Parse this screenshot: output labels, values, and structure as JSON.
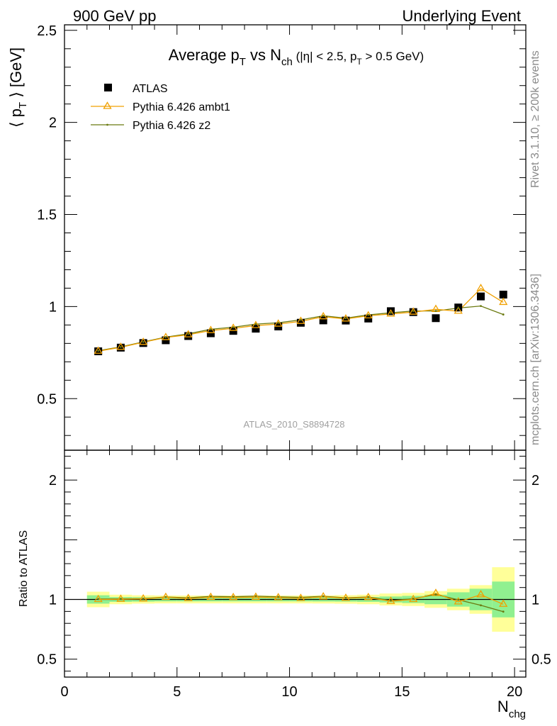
{
  "header": {
    "left": "900 GeV pp",
    "right": "Underlying Event"
  },
  "title": {
    "main": "Average p",
    "sub1": "T",
    "vs": " vs N",
    "sub2": "ch",
    "cond1": " (|η| < 2.5, p",
    "sub3": "T",
    "cond2": " > 0.5 GeV)"
  },
  "side_labels": {
    "rivet": "Rivet 3.1.10, ≥ 200k events",
    "mcplots": "mcplots.cern.ch [arXiv:1306.3436]"
  },
  "watermark": "ATLAS_2010_S8894728",
  "legend": {
    "atlas": "ATLAS",
    "ambt1": "Pythia 6.426 ambt1",
    "z2": "Pythia 6.426 z2"
  },
  "colors": {
    "ambt1": "#f0a000",
    "z2": "#6b7a10",
    "band_inner": "#90f090",
    "band_outer": "#ffff99",
    "data": "#000000"
  },
  "chart_data": {
    "type": "scatter",
    "x_axis": {
      "label_main": "N",
      "label_sub": "chg",
      "range": [
        0,
        20.5
      ],
      "ticks": [
        "0",
        "5",
        "10",
        "15",
        "20"
      ]
    },
    "main_panel": {
      "ylabel_main": "⟨ p",
      "ylabel_sub": "T",
      "ylabel_end": " ⟩ [GeV]",
      "yrange": [
        0.22,
        2.53
      ],
      "yticks": [
        "0.5",
        "1",
        "1.5",
        "2",
        "2.5"
      ],
      "series": [
        {
          "name": "ATLAS",
          "x": [
            1.5,
            2.5,
            3.5,
            4.5,
            5.5,
            6.5,
            7.5,
            8.5,
            9.5,
            10.5,
            11.5,
            12.5,
            13.5,
            14.5,
            15.5,
            16.5,
            17.5,
            18.5,
            19.5
          ],
          "y": [
            0.757,
            0.777,
            0.802,
            0.817,
            0.84,
            0.855,
            0.868,
            0.88,
            0.892,
            0.912,
            0.925,
            0.924,
            0.935,
            0.975,
            0.97,
            0.937,
            0.995,
            1.055,
            1.065
          ]
        },
        {
          "name": "Pythia 6.426 ambt1",
          "x": [
            1.5,
            2.5,
            3.5,
            4.5,
            5.5,
            6.5,
            7.5,
            8.5,
            9.5,
            10.5,
            11.5,
            12.5,
            13.5,
            14.5,
            15.5,
            16.5,
            17.5,
            18.5,
            19.5
          ],
          "y": [
            0.758,
            0.779,
            0.806,
            0.832,
            0.847,
            0.87,
            0.882,
            0.897,
            0.905,
            0.92,
            0.945,
            0.933,
            0.95,
            0.96,
            0.97,
            0.985,
            0.975,
            1.098,
            1.023
          ]
        },
        {
          "name": "Pythia 6.426 z2",
          "x": [
            1.5,
            2.5,
            3.5,
            4.5,
            5.5,
            6.5,
            7.5,
            8.5,
            9.5,
            10.5,
            11.5,
            12.5,
            13.5,
            14.5,
            15.5,
            16.5,
            17.5,
            18.5,
            19.5
          ],
          "y": [
            0.76,
            0.781,
            0.808,
            0.834,
            0.852,
            0.877,
            0.888,
            0.905,
            0.912,
            0.928,
            0.95,
            0.937,
            0.955,
            0.966,
            0.976,
            0.976,
            0.992,
            1.003,
            0.957
          ]
        }
      ]
    },
    "ratio_panel": {
      "ylabel": "Ratio to ATLAS",
      "yrange": [
        0.35,
        2.25
      ],
      "yticks": [
        "0.5",
        "1",
        "2"
      ],
      "bands": {
        "x_lo": [
          1,
          2,
          3,
          4,
          5,
          6,
          7,
          8,
          9,
          10,
          11,
          12,
          13,
          14,
          15,
          16,
          17,
          18,
          19
        ],
        "x_hi": [
          2,
          3,
          4,
          5,
          6,
          7,
          8,
          9,
          10,
          11,
          12,
          13,
          14,
          15,
          16,
          17,
          18,
          19,
          20
        ],
        "inner": [
          0.035,
          0.02,
          0.018,
          0.016,
          0.016,
          0.016,
          0.016,
          0.016,
          0.016,
          0.016,
          0.017,
          0.018,
          0.02,
          0.025,
          0.03,
          0.04,
          0.06,
          0.09,
          0.15
        ],
        "outer": [
          0.065,
          0.04,
          0.035,
          0.033,
          0.033,
          0.033,
          0.033,
          0.033,
          0.033,
          0.033,
          0.034,
          0.036,
          0.04,
          0.05,
          0.055,
          0.07,
          0.09,
          0.12,
          0.27
        ]
      },
      "series": [
        {
          "name": "Pythia 6.426 ambt1",
          "y": [
            1.0,
            1.002,
            1.005,
            1.018,
            1.008,
            1.018,
            1.016,
            1.019,
            1.015,
            1.009,
            1.022,
            1.01,
            1.016,
            0.985,
            1.0,
            1.051,
            0.98,
            1.04,
            0.96
          ]
        },
        {
          "name": "Pythia 6.426 z2",
          "y": [
            1.004,
            1.005,
            1.007,
            1.021,
            1.014,
            1.026,
            1.023,
            1.028,
            1.022,
            1.018,
            1.027,
            1.014,
            1.021,
            0.991,
            1.006,
            1.042,
            0.997,
            0.951,
            0.898
          ]
        }
      ]
    }
  }
}
